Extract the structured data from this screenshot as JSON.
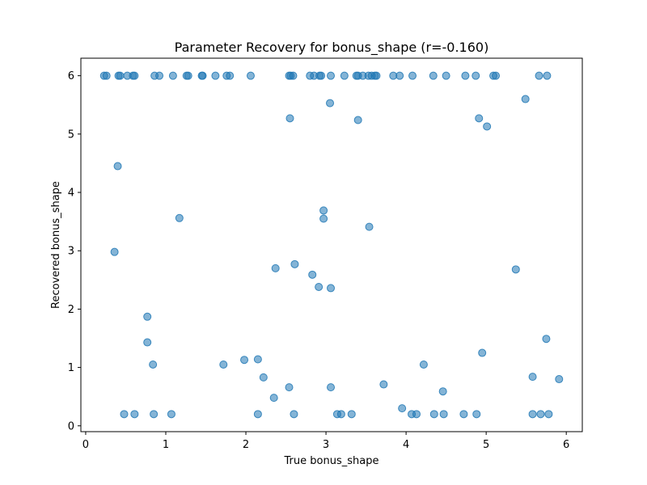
{
  "chart_data": {
    "type": "scatter",
    "title": "Parameter Recovery for bonus_shape (r=-0.160)",
    "xlabel": "True bonus_shape",
    "ylabel": "Recovered bonus_shape",
    "xlim": [
      -0.06,
      6.2
    ],
    "ylim": [
      -0.1,
      6.3
    ],
    "xticks": [
      0,
      1,
      2,
      3,
      4,
      5,
      6
    ],
    "yticks": [
      0,
      1,
      2,
      3,
      4,
      5,
      6
    ],
    "grid": false,
    "legend": "none",
    "marker_color": "#1f77b4",
    "marker_alpha": 0.55,
    "points": [
      [
        0.23,
        6.0
      ],
      [
        0.26,
        6.0
      ],
      [
        0.41,
        6.0
      ],
      [
        0.43,
        6.0
      ],
      [
        0.52,
        6.0
      ],
      [
        0.59,
        6.0
      ],
      [
        0.61,
        6.0
      ],
      [
        0.86,
        6.0
      ],
      [
        0.92,
        6.0
      ],
      [
        1.09,
        6.0
      ],
      [
        1.26,
        6.0
      ],
      [
        1.28,
        6.0
      ],
      [
        1.45,
        6.0
      ],
      [
        1.46,
        6.0
      ],
      [
        1.62,
        6.0
      ],
      [
        1.76,
        6.0
      ],
      [
        1.8,
        6.0
      ],
      [
        2.06,
        6.0
      ],
      [
        2.54,
        6.0
      ],
      [
        2.56,
        6.0
      ],
      [
        2.59,
        6.0
      ],
      [
        2.8,
        6.0
      ],
      [
        2.85,
        6.0
      ],
      [
        2.92,
        6.0
      ],
      [
        2.94,
        6.0
      ],
      [
        3.06,
        6.0
      ],
      [
        3.23,
        6.0
      ],
      [
        3.38,
        6.0
      ],
      [
        3.4,
        6.0
      ],
      [
        3.46,
        6.0
      ],
      [
        3.53,
        6.0
      ],
      [
        3.57,
        6.0
      ],
      [
        3.61,
        6.0
      ],
      [
        3.63,
        6.0
      ],
      [
        3.84,
        6.0
      ],
      [
        3.92,
        6.0
      ],
      [
        4.08,
        6.0
      ],
      [
        4.34,
        6.0
      ],
      [
        4.5,
        6.0
      ],
      [
        4.74,
        6.0
      ],
      [
        4.87,
        6.0
      ],
      [
        5.09,
        6.0
      ],
      [
        5.12,
        6.0
      ],
      [
        5.66,
        6.0
      ],
      [
        5.76,
        6.0
      ],
      [
        3.05,
        5.53
      ],
      [
        5.49,
        5.6
      ],
      [
        2.55,
        5.27
      ],
      [
        3.4,
        5.24
      ],
      [
        4.91,
        5.27
      ],
      [
        5.01,
        5.13
      ],
      [
        0.4,
        4.45
      ],
      [
        2.97,
        3.69
      ],
      [
        2.97,
        3.55
      ],
      [
        1.17,
        3.56
      ],
      [
        3.54,
        3.41
      ],
      [
        0.36,
        2.98
      ],
      [
        2.37,
        2.7
      ],
      [
        2.61,
        2.77
      ],
      [
        5.37,
        2.68
      ],
      [
        2.83,
        2.59
      ],
      [
        2.91,
        2.38
      ],
      [
        3.06,
        2.36
      ],
      [
        0.77,
        1.87
      ],
      [
        0.77,
        1.43
      ],
      [
        5.75,
        1.49
      ],
      [
        4.95,
        1.25
      ],
      [
        0.84,
        1.05
      ],
      [
        1.72,
        1.05
      ],
      [
        1.98,
        1.13
      ],
      [
        2.15,
        1.14
      ],
      [
        4.22,
        1.05
      ],
      [
        2.22,
        0.83
      ],
      [
        5.58,
        0.84
      ],
      [
        5.91,
        0.8
      ],
      [
        3.72,
        0.71
      ],
      [
        2.54,
        0.66
      ],
      [
        3.06,
        0.66
      ],
      [
        2.35,
        0.48
      ],
      [
        4.46,
        0.59
      ],
      [
        3.95,
        0.3
      ],
      [
        0.48,
        0.2
      ],
      [
        0.61,
        0.2
      ],
      [
        0.85,
        0.2
      ],
      [
        1.07,
        0.2
      ],
      [
        2.15,
        0.2
      ],
      [
        2.6,
        0.2
      ],
      [
        3.14,
        0.2
      ],
      [
        3.19,
        0.2
      ],
      [
        3.32,
        0.2
      ],
      [
        4.07,
        0.2
      ],
      [
        4.13,
        0.2
      ],
      [
        4.35,
        0.2
      ],
      [
        4.47,
        0.2
      ],
      [
        4.72,
        0.2
      ],
      [
        4.88,
        0.2
      ],
      [
        5.58,
        0.2
      ],
      [
        5.68,
        0.2
      ],
      [
        5.78,
        0.2
      ]
    ]
  }
}
